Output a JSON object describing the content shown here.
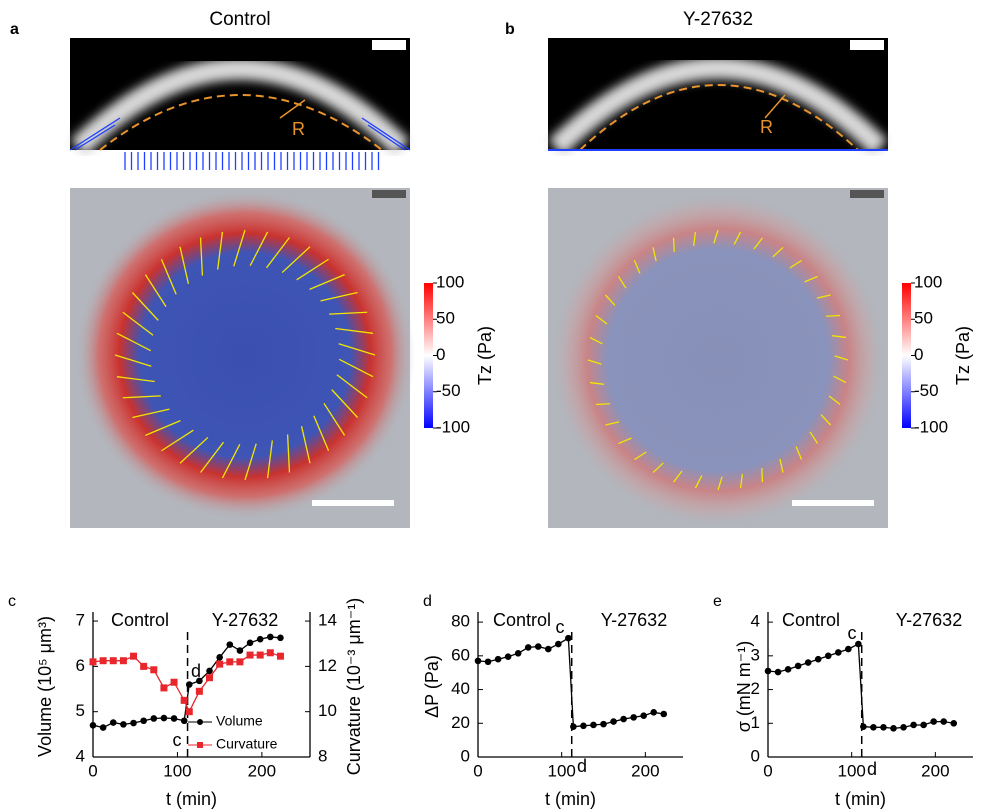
{
  "figure": {
    "panels": [
      {
        "label": "a",
        "title": "Control",
        "annotation": "R"
      },
      {
        "label": "b",
        "title": "Y-27632",
        "annotation": "R"
      }
    ]
  },
  "chart_data": [
    {
      "type": "colorbar",
      "label": "Tz (Pa)",
      "ylim": [
        -100,
        100
      ],
      "yticks": [
        100,
        50,
        0,
        -50,
        -100
      ],
      "colors": [
        "#0000ff",
        "#ffffff",
        "#ff0000"
      ]
    },
    {
      "type": "colorbar",
      "label": "Tz (Pa)",
      "ylim": [
        -100,
        100
      ],
      "yticks": [
        100,
        50,
        0,
        -50,
        -100
      ],
      "colors": [
        "#0000ff",
        "#ffffff",
        "#ff0000"
      ]
    },
    {
      "type": "line",
      "panel_label": "c",
      "x": [
        0,
        12,
        24,
        36,
        48,
        60,
        72,
        84,
        96,
        108,
        114,
        126,
        138,
        150,
        162,
        174,
        186,
        198,
        210,
        222
      ],
      "xlim": [
        0,
        257
      ],
      "xticks": [
        0,
        100,
        200
      ],
      "xlabel": "t (min)",
      "ylabel": "Volume (10⁵ μm³)",
      "ylim": [
        4,
        7.2
      ],
      "yticks": [
        4,
        5,
        6,
        7
      ],
      "y2label": "Curvature (10⁻³ μm⁻¹)",
      "y2lim": [
        8,
        14.4
      ],
      "y2ticks": [
        8,
        10,
        12,
        14
      ],
      "series": [
        {
          "name": "Volume",
          "color": "#000000",
          "marker": "circle",
          "values": [
            4.7,
            4.65,
            4.76,
            4.72,
            4.75,
            4.8,
            4.85,
            4.86,
            4.85,
            4.8,
            5.6,
            5.68,
            5.9,
            6.2,
            6.48,
            6.35,
            6.52,
            6.6,
            6.65,
            6.63
          ]
        },
        {
          "name": "Curvature",
          "color": "#e8262b",
          "marker": "square",
          "axis": "y2",
          "values": [
            12.2,
            12.25,
            12.25,
            12.25,
            12.45,
            12.0,
            11.85,
            11.05,
            11.3,
            10.5,
            10.0,
            10.9,
            11.5,
            12.1,
            12.2,
            12.2,
            12.5,
            12.5,
            12.6,
            12.45
          ]
        }
      ],
      "divider_x": 112,
      "annotations": [
        "Control",
        "Y-27632",
        "c",
        "d"
      ],
      "legend": true
    },
    {
      "type": "line",
      "panel_label": "d",
      "x": [
        0,
        12,
        24,
        36,
        48,
        60,
        72,
        84,
        96,
        108,
        114,
        126,
        138,
        150,
        162,
        174,
        186,
        198,
        210,
        222
      ],
      "xlim": [
        0,
        245
      ],
      "xticks": [
        0,
        100,
        200
      ],
      "xlabel": "t (min)",
      "ylabel": "ΔP (Pa)",
      "ylim": [
        0,
        86
      ],
      "yticks": [
        0,
        20,
        40,
        60,
        80
      ],
      "series": [
        {
          "name": null,
          "color": "#000000",
          "marker": "circle",
          "values": [
            57,
            56.5,
            58,
            59.5,
            61.5,
            65,
            65.5,
            64,
            67,
            70.5,
            18,
            18.5,
            19,
            19.5,
            21,
            22.5,
            23.5,
            24.5,
            26.5,
            25.5
          ]
        }
      ],
      "divider_x": 112,
      "annotations": [
        "Control",
        "Y-27632",
        "c",
        "d"
      ],
      "legend": false
    },
    {
      "type": "line",
      "panel_label": "e",
      "x": [
        0,
        12,
        24,
        36,
        48,
        60,
        72,
        84,
        96,
        108,
        114,
        126,
        138,
        150,
        162,
        174,
        186,
        198,
        210,
        222
      ],
      "xlim": [
        0,
        245
      ],
      "xticks": [
        0,
        100,
        200
      ],
      "xlabel": "t (min)",
      "ylabel": "σ (mN m⁻¹)",
      "ylim": [
        0,
        4.3
      ],
      "yticks": [
        0,
        1,
        2,
        3,
        4
      ],
      "series": [
        {
          "name": null,
          "color": "#000000",
          "marker": "circle",
          "values": [
            2.55,
            2.52,
            2.6,
            2.7,
            2.8,
            2.9,
            3.0,
            3.1,
            3.2,
            3.35,
            0.9,
            0.88,
            0.88,
            0.85,
            0.88,
            0.95,
            0.95,
            1.05,
            1.05,
            1.0
          ]
        }
      ],
      "divider_x": 112,
      "annotations": [
        "Control",
        "Y-27632",
        "c",
        "d"
      ],
      "legend": false
    }
  ]
}
